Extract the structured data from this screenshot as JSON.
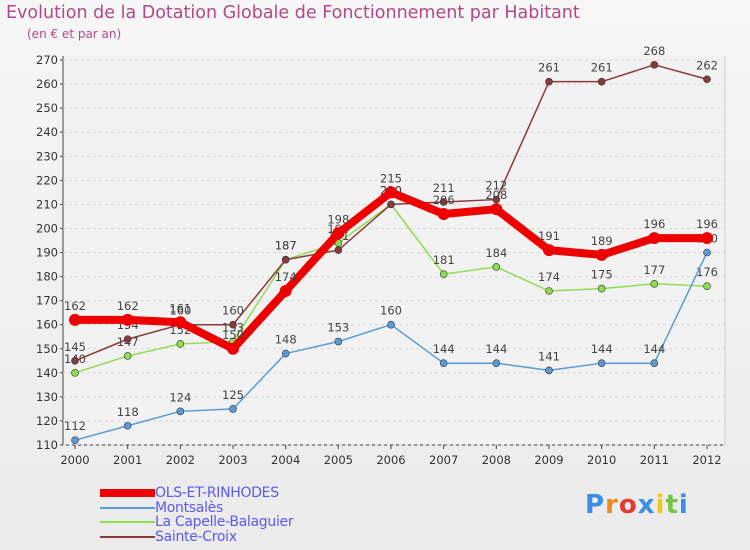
{
  "title": "Evolution de la Dotation Globale de Fonctionnement par Habitant",
  "subtitle": "(en € et par an)",
  "logo_text": "Proxiti",
  "chart_data": {
    "type": "line",
    "title": "Evolution de la Dotation Globale de Fonctionnement par Habitant",
    "subtitle": "(en € et par an)",
    "x": [
      2000,
      2001,
      2002,
      2003,
      2004,
      2005,
      2006,
      2007,
      2008,
      2009,
      2010,
      2011,
      2012
    ],
    "xlabel": "",
    "ylabel": "",
    "ylim": [
      110,
      270
    ],
    "yticks": [
      110,
      120,
      130,
      140,
      150,
      160,
      170,
      180,
      190,
      200,
      210,
      220,
      230,
      240,
      250,
      260,
      270
    ],
    "grid": "horizontal",
    "legend_position": "bottom-left",
    "series": [
      {
        "name": "OLS-ET-RINHODES",
        "color": "#ee0000",
        "values": [
          162,
          162,
          161,
          150,
          174,
          198,
          215,
          206,
          208,
          191,
          189,
          196,
          196
        ],
        "labels": [
          "162",
          "162",
          "161",
          "150",
          "174",
          "198",
          "215",
          "206",
          "208",
          "191",
          "189",
          "196",
          "196"
        ]
      },
      {
        "name": "Montsalès",
        "color": "#5b9bd5",
        "values": [
          112,
          118,
          124,
          125,
          148,
          153,
          160,
          144,
          144,
          141,
          144,
          144,
          190
        ],
        "labels": [
          "112",
          "118",
          "124",
          "125",
          "148",
          "153",
          "160",
          "144",
          "144",
          "141",
          "144",
          "144",
          "190"
        ]
      },
      {
        "name": "La Capelle-Balaguier",
        "color": "#8fdc50",
        "values": [
          140,
          147,
          152,
          153,
          187,
          194,
          210,
          181,
          184,
          174,
          175,
          177,
          176
        ],
        "labels": [
          "140",
          "147",
          "152",
          "153",
          "187",
          "194",
          "210",
          "181",
          "184",
          "174",
          "175",
          "177",
          "176"
        ]
      },
      {
        "name": "Sainte-Croix",
        "color": "#8b3a3a",
        "values": [
          145,
          154,
          160,
          160,
          187,
          191,
          210,
          211,
          212,
          261,
          261,
          268,
          262
        ],
        "labels": [
          "145",
          "154",
          "160",
          "160",
          "187",
          "191",
          "210",
          "211",
          "212",
          "261",
          "261",
          "268",
          "262"
        ]
      }
    ]
  }
}
